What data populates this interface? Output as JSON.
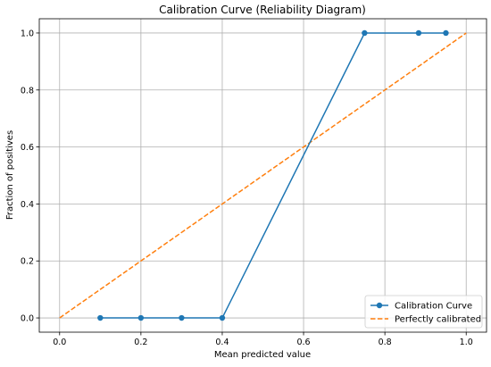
{
  "chart_data": {
    "type": "line",
    "title": "Calibration Curve (Reliability Diagram)",
    "xlabel": "Mean predicted value",
    "ylabel": "Fraction of positives",
    "xlim": [
      -0.05,
      1.05
    ],
    "ylim": [
      -0.05,
      1.05
    ],
    "xticks": [
      "0.0",
      "0.2",
      "0.4",
      "0.6",
      "0.8",
      "1.0"
    ],
    "yticks": [
      "0.0",
      "0.2",
      "0.4",
      "0.6",
      "0.8",
      "1.0"
    ],
    "grid": true,
    "legend_position": "bottom-right",
    "series": [
      {
        "name": "Calibration Curve",
        "color": "#1f77b4",
        "style": "solid",
        "marker": "circle",
        "x": [
          0.1,
          0.2,
          0.3,
          0.4,
          0.75,
          0.883,
          0.95
        ],
        "y": [
          0.0,
          0.0,
          0.0,
          0.0,
          1.0,
          1.0,
          1.0
        ]
      },
      {
        "name": "Perfectly calibrated",
        "color": "#ff7f0e",
        "style": "dashed",
        "marker": "none",
        "x": [
          0.0,
          1.0
        ],
        "y": [
          0.0,
          1.0
        ]
      }
    ]
  }
}
